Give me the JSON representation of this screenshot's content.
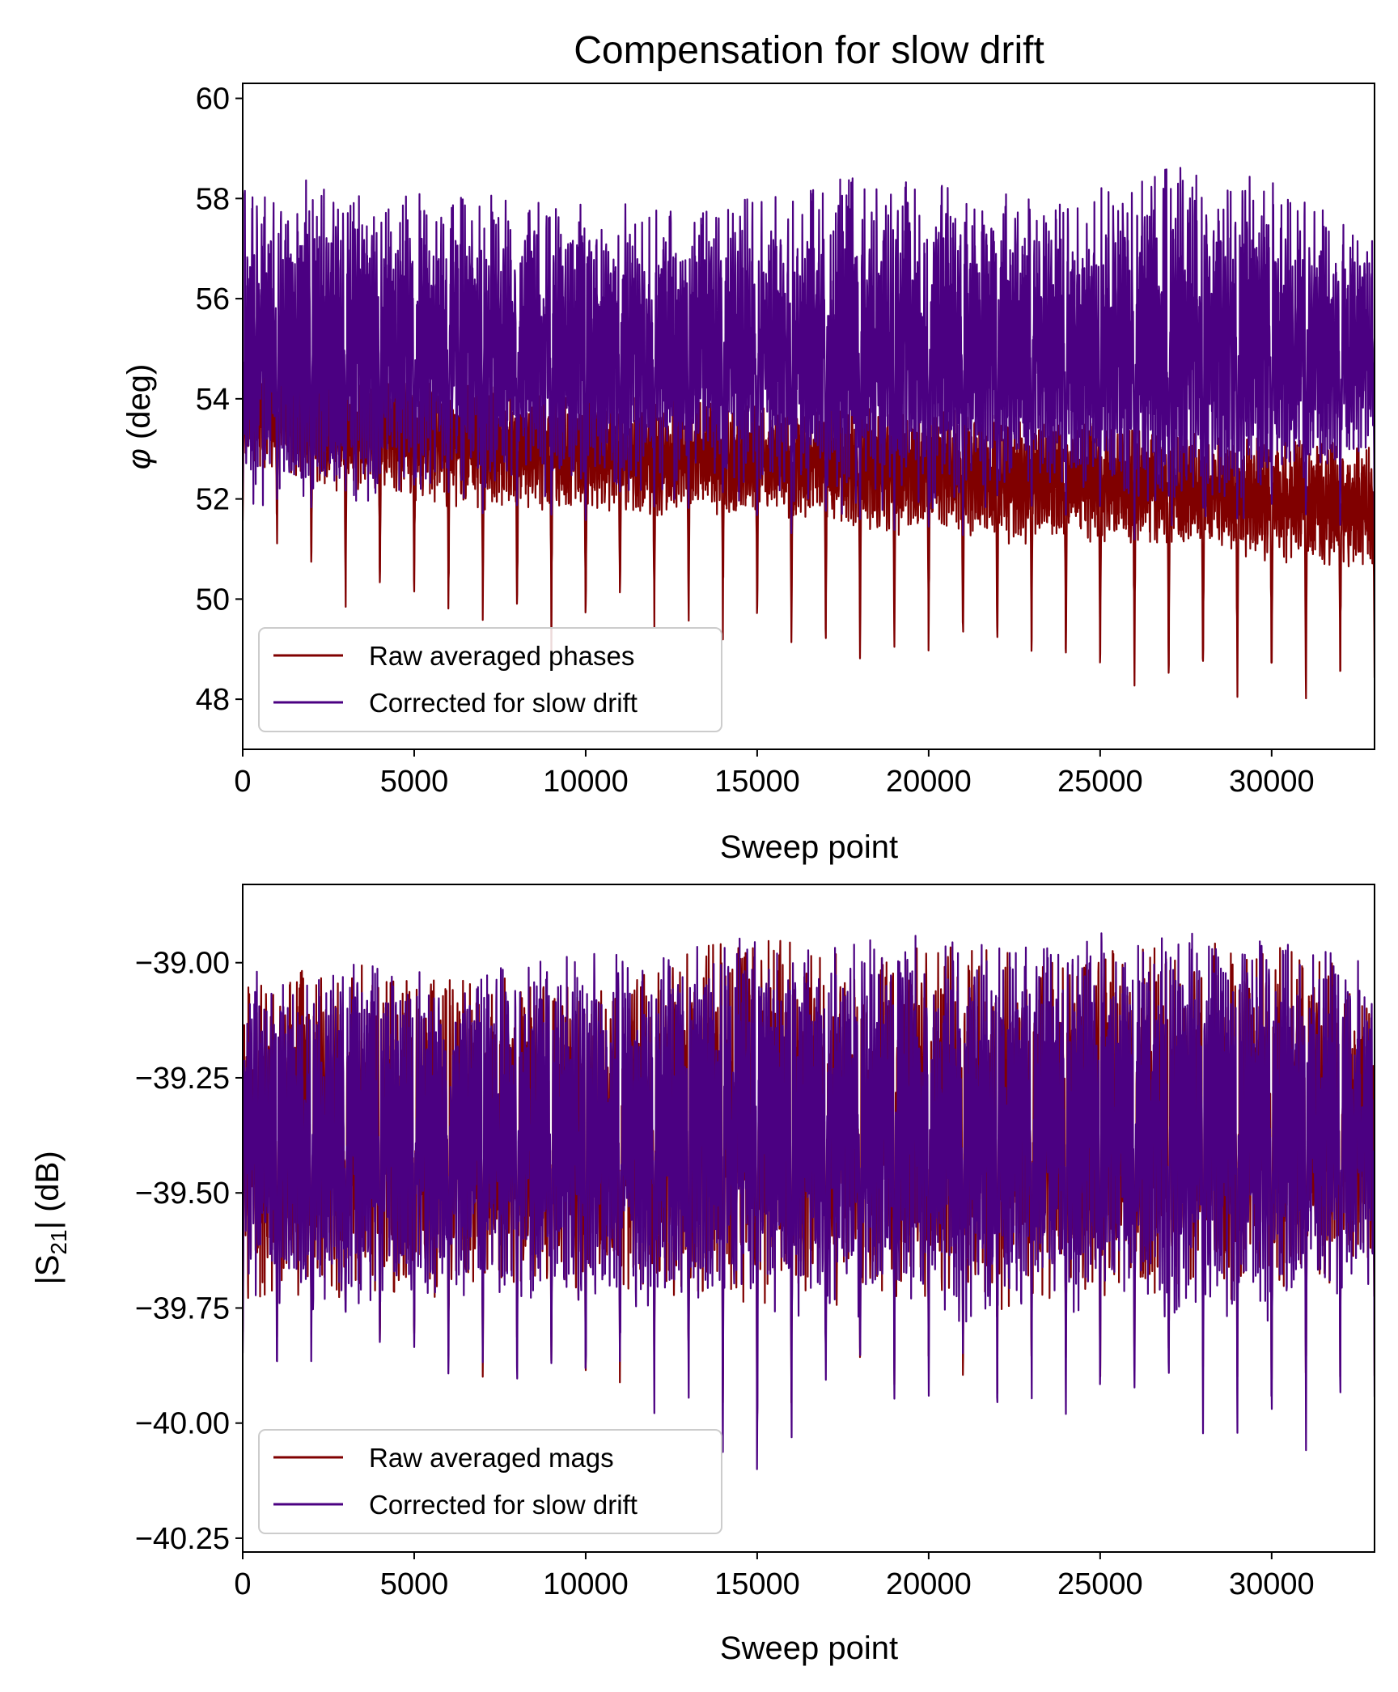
{
  "figure_title": "Compensation for slow drift",
  "colors": {
    "raw": "#800000",
    "corrected": "#4b0082"
  },
  "chart_data": [
    {
      "type": "line",
      "xlabel": "Sweep point",
      "ylabel_symbol": "φ",
      "ylabel_rest": " (deg)",
      "xlim": [
        0,
        33000
      ],
      "ylim": [
        47.0,
        60.3
      ],
      "xticks": [
        0,
        5000,
        10000,
        15000,
        20000,
        25000,
        30000
      ],
      "xtick_labels": [
        "0",
        "5000",
        "10000",
        "15000",
        "20000",
        "25000",
        "30000"
      ],
      "yticks": [
        48,
        50,
        52,
        54,
        56,
        58,
        60
      ],
      "ytick_labels": [
        "48",
        "50",
        "52",
        "54",
        "56",
        "58",
        "60"
      ],
      "legend_position": "lower-left",
      "period": 1000,
      "series": [
        {
          "name": "Raw averaged phases",
          "color": "#800000",
          "keypoints_x": [
            0,
            1500,
            3000,
            6000,
            9000,
            12000,
            15000,
            18000,
            21000,
            24000,
            27000,
            30000,
            33000
          ],
          "base": [
            54.0,
            53.6,
            53.4,
            53.1,
            52.9,
            52.8,
            52.8,
            52.6,
            52.5,
            52.3,
            52.2,
            52.0,
            51.8
          ],
          "upper": [
            55.2,
            54.8,
            54.6,
            54.3,
            54.1,
            54.0,
            53.9,
            53.8,
            53.7,
            53.5,
            53.3,
            53.2,
            53.0
          ],
          "dip_min": [
            51.0,
            50.8,
            49.6,
            49.5,
            48.7,
            49.3,
            49.0,
            48.5,
            48.6,
            48.3,
            47.8,
            47.6,
            48.2
          ]
        },
        {
          "name": "Corrected for slow drift",
          "color": "#4b0082",
          "keypoints_x": [
            0,
            1500,
            3000,
            6000,
            9000,
            12000,
            15000,
            18000,
            21000,
            24000,
            27000,
            30000,
            33000
          ],
          "base": [
            55.0,
            55.0,
            55.0,
            55.0,
            55.0,
            55.0,
            55.0,
            55.0,
            55.0,
            55.0,
            55.0,
            55.0,
            55.0
          ],
          "upper": [
            58.0,
            58.3,
            58.0,
            57.9,
            57.8,
            57.8,
            57.9,
            58.3,
            58.1,
            57.8,
            58.5,
            58.2,
            57.2
          ],
          "dip_min": [
            51.5,
            51.5,
            51.5,
            51.8,
            51.2,
            51.3,
            51.1,
            51.0,
            51.0,
            51.2,
            51.0,
            51.1,
            51.0
          ]
        }
      ]
    },
    {
      "type": "line",
      "xlabel": "Sweep point",
      "ylabel_pre": "|S",
      "ylabel_sub": "21",
      "ylabel_post": "| (dB)",
      "xlim": [
        0,
        33000
      ],
      "ylim": [
        -40.28,
        -38.83
      ],
      "xticks": [
        0,
        5000,
        10000,
        15000,
        20000,
        25000,
        30000
      ],
      "xtick_labels": [
        "0",
        "5000",
        "10000",
        "15000",
        "20000",
        "25000",
        "30000"
      ],
      "yticks": [
        -40.25,
        -40.0,
        -39.75,
        -39.5,
        -39.25,
        -39.0
      ],
      "ytick_labels": [
        "−40.25",
        "−40.00",
        "−39.75",
        "−39.50",
        "−39.25",
        "−39.00"
      ],
      "legend_position": "lower-left",
      "period": 1000,
      "series": [
        {
          "name": "Raw averaged mags",
          "color": "#800000",
          "keypoints_x": [
            0,
            3000,
            6000,
            9000,
            12000,
            15000,
            18000,
            21000,
            24000,
            27000,
            30000,
            33000
          ],
          "base": [
            -39.38,
            -39.38,
            -39.38,
            -39.38,
            -39.37,
            -39.35,
            -39.36,
            -39.36,
            -39.36,
            -39.35,
            -39.35,
            -39.36
          ],
          "upper": [
            -39.05,
            -39.02,
            -39.05,
            -39.05,
            -39.02,
            -38.95,
            -39.0,
            -38.98,
            -39.0,
            -38.98,
            -38.97,
            -39.05
          ],
          "dip_min": [
            -39.9,
            -39.85,
            -39.9,
            -39.95,
            -39.95,
            -40.1,
            -39.95,
            -39.98,
            -39.98,
            -39.98,
            -40.05,
            -39.95
          ]
        },
        {
          "name": "Corrected for slow drift",
          "color": "#4b0082",
          "keypoints_x": [
            0,
            3000,
            6000,
            9000,
            12000,
            15000,
            18000,
            21000,
            24000,
            27000,
            30000,
            33000
          ],
          "base": [
            -39.38,
            -39.38,
            -39.38,
            -39.38,
            -39.37,
            -39.35,
            -39.36,
            -39.36,
            -39.36,
            -39.35,
            -39.35,
            -39.36
          ],
          "upper": [
            -39.04,
            -39.0,
            -39.04,
            -39.0,
            -39.0,
            -38.95,
            -38.97,
            -38.95,
            -38.98,
            -38.95,
            -38.95,
            -39.02
          ],
          "dip_min": [
            -39.95,
            -39.88,
            -39.95,
            -40.0,
            -40.0,
            -40.22,
            -40.0,
            -40.02,
            -40.05,
            -40.02,
            -40.12,
            -40.0
          ]
        }
      ]
    }
  ]
}
